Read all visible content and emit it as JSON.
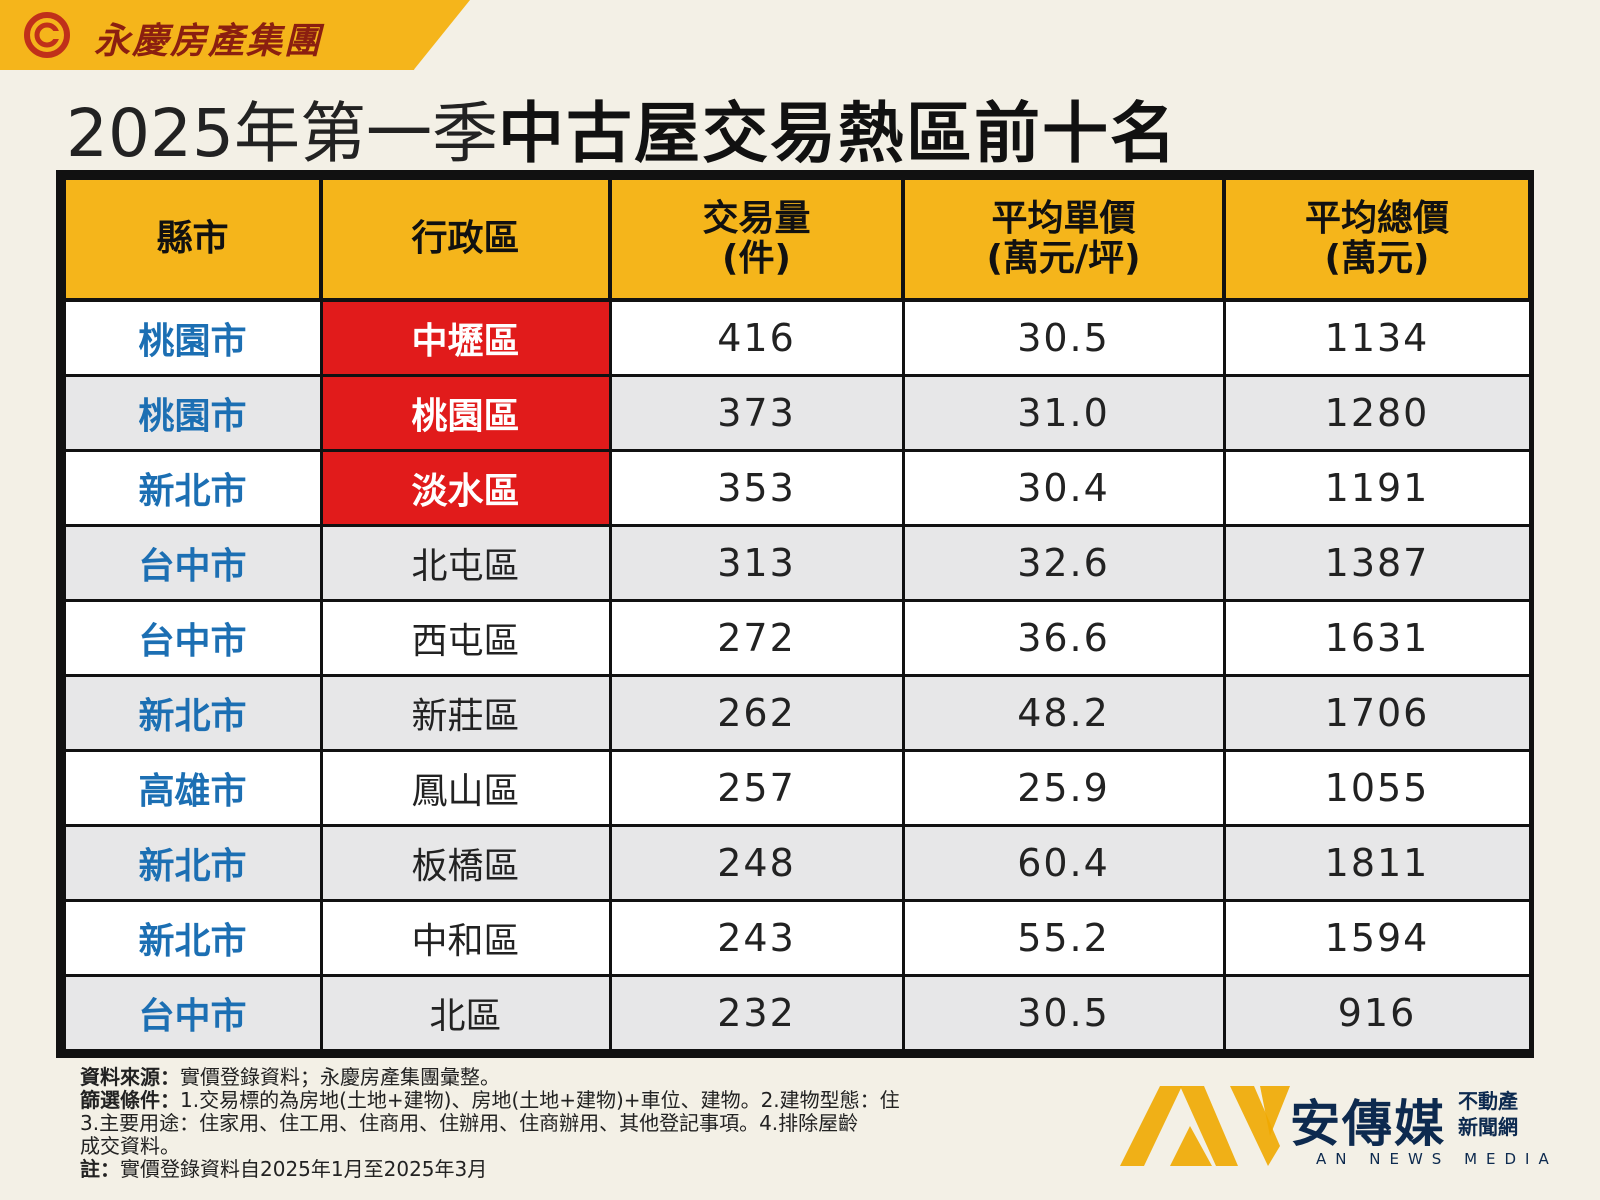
{
  "brand": {
    "name": "永慶房產集團",
    "logo_icon": "yungching-swirl-logo"
  },
  "title": {
    "prefix": "2025年第一季",
    "main": "中古屋交易熱區前十名"
  },
  "chart_data": {
    "type": "table",
    "columns": [
      "縣市",
      "行政區",
      "交易量(件)",
      "平均單價(萬元/坪)",
      "平均總價(萬元)"
    ],
    "rows": [
      {
        "city": "桃園市",
        "district": "中壢區",
        "volume": "416",
        "unit_price": "30.5",
        "total_price": "1134",
        "highlight": true
      },
      {
        "city": "桃園市",
        "district": "桃園區",
        "volume": "373",
        "unit_price": "31.0",
        "total_price": "1280",
        "highlight": true
      },
      {
        "city": "新北市",
        "district": "淡水區",
        "volume": "353",
        "unit_price": "30.4",
        "total_price": "1191",
        "highlight": true
      },
      {
        "city": "台中市",
        "district": "北屯區",
        "volume": "313",
        "unit_price": "32.6",
        "total_price": "1387",
        "highlight": false
      },
      {
        "city": "台中市",
        "district": "西屯區",
        "volume": "272",
        "unit_price": "36.6",
        "total_price": "1631",
        "highlight": false
      },
      {
        "city": "新北市",
        "district": "新莊區",
        "volume": "262",
        "unit_price": "48.2",
        "total_price": "1706",
        "highlight": false
      },
      {
        "city": "高雄市",
        "district": "鳳山區",
        "volume": "257",
        "unit_price": "25.9",
        "total_price": "1055",
        "highlight": false
      },
      {
        "city": "新北市",
        "district": "板橋區",
        "volume": "248",
        "unit_price": "60.4",
        "total_price": "1811",
        "highlight": false
      },
      {
        "city": "新北市",
        "district": "中和區",
        "volume": "243",
        "unit_price": "55.2",
        "total_price": "1594",
        "highlight": false
      },
      {
        "city": "台中市",
        "district": "北區",
        "volume": "232",
        "unit_price": "30.5",
        "total_price": "916",
        "highlight": false
      }
    ]
  },
  "table": {
    "headers": {
      "city": "縣市",
      "district": "行政區",
      "volume_l1": "交易量",
      "volume_l2": "(件)",
      "unit_price_l1": "平均單價",
      "unit_price_l2": "(萬元/坪)",
      "total_price_l1": "平均總價",
      "total_price_l2": "(萬元)"
    }
  },
  "notes": {
    "source_label": "資料來源：",
    "source_text": "實價登錄資料；永慶房產集團彙整。",
    "filter_label": "篩選條件：",
    "filter_text_1": "1.交易標的為房地(土地+建物)、房地(土地+建物)+車位、建物。2.建物型態：住",
    "filter_text_2": "3.主要用途：住家用、住工用、住商用、住辦用、住商辦用、其他登記事項。4.排除屋齡",
    "filter_text_3": "成交資料。",
    "note_label": "註：",
    "note_text": "實價登錄資料自2025年1月至2025年3月"
  },
  "watermark": {
    "logo_icon": "an-news-media-logo",
    "main": "安傳媒",
    "side_l1": "不動產",
    "side_l2": "新聞網",
    "english": "AN NEWS MEDIA"
  },
  "colors": {
    "header_bg": "#f5b51b",
    "highlight_bg": "#e11b1b",
    "city_text": "#1c6fb3",
    "brand_text": "#8b1f10"
  }
}
